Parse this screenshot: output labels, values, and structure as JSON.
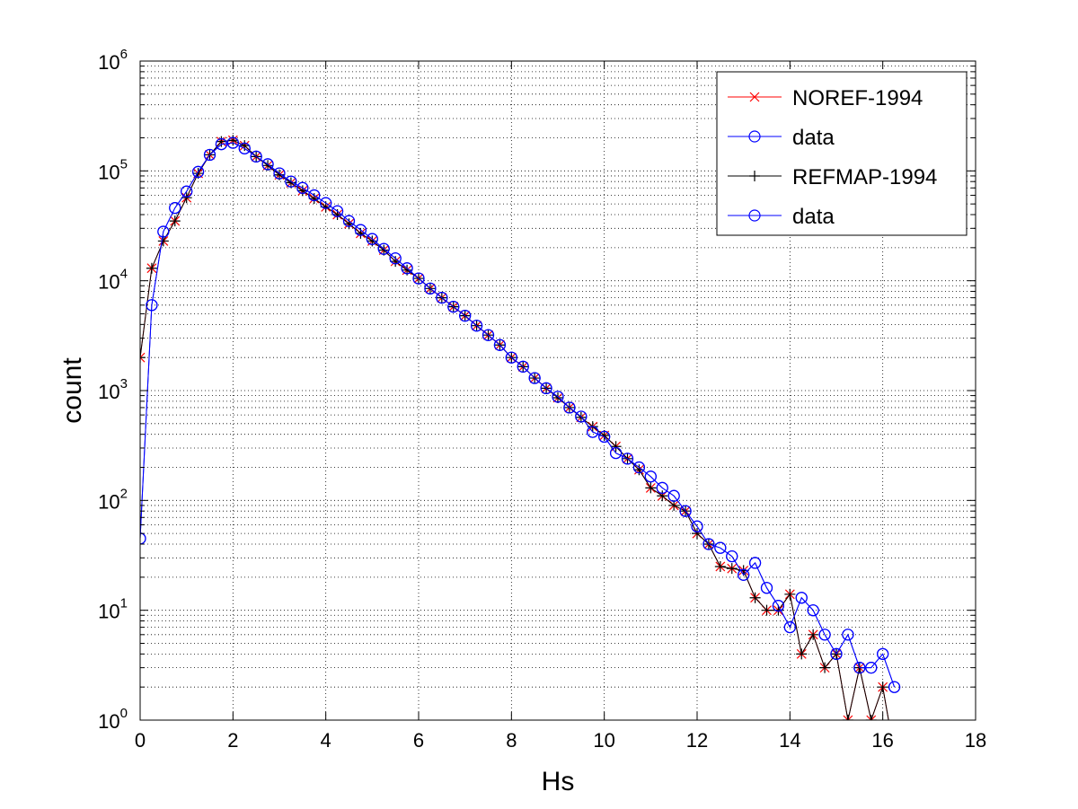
{
  "chart_data": {
    "type": "line",
    "title": "",
    "xlabel": "Hs",
    "ylabel": "count",
    "x_scale": "linear",
    "y_scale": "log",
    "xlim": [
      0,
      18
    ],
    "ylim": [
      1,
      1000000
    ],
    "x_ticks": [
      0,
      2,
      4,
      6,
      8,
      10,
      12,
      14,
      16,
      18
    ],
    "y_ticks": [
      1,
      10,
      100,
      1000,
      10000,
      100000,
      1000000
    ],
    "y_tick_labels": [
      {
        "base": "10",
        "exp": "0"
      },
      {
        "base": "10",
        "exp": "1"
      },
      {
        "base": "10",
        "exp": "2"
      },
      {
        "base": "10",
        "exp": "3"
      },
      {
        "base": "10",
        "exp": "4"
      },
      {
        "base": "10",
        "exp": "5"
      },
      {
        "base": "10",
        "exp": "6"
      }
    ],
    "grid": true,
    "legend_position": "top-right",
    "series": [
      {
        "name": "NOREF-1994",
        "color": "#ff0000",
        "marker": "x",
        "x": [
          0,
          0.25,
          0.5,
          0.75,
          1,
          1.25,
          1.5,
          1.75,
          2,
          2.25,
          2.5,
          2.75,
          3,
          3.25,
          3.5,
          3.75,
          4,
          4.25,
          4.5,
          4.75,
          5,
          5.25,
          5.5,
          5.75,
          6,
          6.25,
          6.5,
          6.75,
          7,
          7.25,
          7.5,
          7.75,
          8,
          8.25,
          8.5,
          8.75,
          9,
          9.25,
          9.5,
          9.75,
          10,
          10.25,
          10.5,
          10.75,
          11,
          11.25,
          11.5,
          11.75,
          12,
          12.25,
          12.5,
          12.75,
          13,
          13.25,
          13.5,
          13.75,
          14,
          14.25,
          14.5,
          14.75,
          15,
          15.25,
          15.5,
          15.75,
          16,
          16.25
        ],
        "y": [
          2000,
          13000,
          23000,
          35000,
          57000,
          95000,
          140000,
          185000,
          190000,
          170000,
          135000,
          112000,
          92000,
          78000,
          66000,
          56000,
          47000,
          40000,
          33000,
          27000,
          23000,
          19000,
          15000,
          12500,
          10500,
          8500,
          7000,
          5800,
          4800,
          3900,
          3200,
          2600,
          2000,
          1650,
          1300,
          1050,
          860,
          700,
          570,
          470,
          390,
          310,
          240,
          190,
          130,
          110,
          90,
          80,
          50,
          40,
          25,
          24,
          23,
          13,
          10,
          10,
          14,
          4,
          6,
          3,
          4,
          1,
          3,
          1,
          2,
          0.5
        ]
      },
      {
        "name": "data",
        "color": "#0000ff",
        "marker": "o",
        "x": [
          0,
          0.25,
          0.5,
          0.75,
          1,
          1.25,
          1.5,
          1.75,
          2,
          2.25,
          2.5,
          2.75,
          3,
          3.25,
          3.5,
          3.75,
          4,
          4.25,
          4.5,
          4.75,
          5,
          5.25,
          5.5,
          5.75,
          6,
          6.25,
          6.5,
          6.75,
          7,
          7.25,
          7.5,
          7.75,
          8,
          8.25,
          8.5,
          8.75,
          9,
          9.25,
          9.5,
          9.75,
          10,
          10.25,
          10.5,
          10.75,
          11,
          11.25,
          11.5,
          11.75,
          12,
          12.25,
          12.5,
          12.75,
          13,
          13.25,
          13.5,
          13.75,
          14,
          14.25,
          14.5,
          14.75,
          15,
          15.25,
          15.5,
          15.75,
          16,
          16.25
        ],
        "y": [
          45,
          6000,
          28000,
          46000,
          65000,
          98000,
          140000,
          175000,
          180000,
          160000,
          135000,
          115000,
          95000,
          80000,
          70000,
          60000,
          51000,
          43000,
          35000,
          29000,
          24000,
          19500,
          16000,
          13000,
          10500,
          8500,
          7000,
          5800,
          4800,
          3900,
          3200,
          2600,
          2000,
          1650,
          1300,
          1050,
          880,
          700,
          580,
          420,
          380,
          270,
          240,
          200,
          165,
          130,
          110,
          80,
          58,
          40,
          37,
          31,
          21,
          27,
          16,
          11,
          7,
          13,
          10,
          6,
          4,
          6,
          3,
          3,
          4,
          2
        ]
      },
      {
        "name": "REFMAP-1994",
        "color": "#000000",
        "marker": "+",
        "x": [
          0,
          0.25,
          0.5,
          0.75,
          1,
          1.25,
          1.5,
          1.75,
          2,
          2.25,
          2.5,
          2.75,
          3,
          3.25,
          3.5,
          3.75,
          4,
          4.25,
          4.5,
          4.75,
          5,
          5.25,
          5.5,
          5.75,
          6,
          6.25,
          6.5,
          6.75,
          7,
          7.25,
          7.5,
          7.75,
          8,
          8.25,
          8.5,
          8.75,
          9,
          9.25,
          9.5,
          9.75,
          10,
          10.25,
          10.5,
          10.75,
          11,
          11.25,
          11.5,
          11.75,
          12,
          12.25,
          12.5,
          12.75,
          13,
          13.25,
          13.5,
          13.75,
          14,
          14.25,
          14.5,
          14.75,
          15,
          15.25,
          15.5,
          15.75,
          16,
          16.25
        ],
        "y": [
          2000,
          13000,
          23000,
          35000,
          57000,
          95000,
          140000,
          185000,
          190000,
          170000,
          135000,
          112000,
          92000,
          78000,
          66000,
          56000,
          47000,
          40000,
          33000,
          27000,
          23000,
          19000,
          15000,
          12500,
          10500,
          8500,
          7000,
          5800,
          4800,
          3900,
          3200,
          2600,
          2000,
          1650,
          1300,
          1050,
          860,
          700,
          570,
          470,
          390,
          310,
          240,
          190,
          130,
          110,
          90,
          80,
          50,
          40,
          25,
          24,
          23,
          13,
          10,
          10,
          14,
          4,
          6,
          3,
          4,
          1,
          3,
          1,
          2,
          0.5
        ]
      },
      {
        "name": "data",
        "color": "#0000ff",
        "marker": "o",
        "x": [
          0,
          0.25,
          0.5,
          0.75,
          1,
          1.25,
          1.5,
          1.75,
          2,
          2.25,
          2.5,
          2.75,
          3,
          3.25,
          3.5,
          3.75,
          4,
          4.25,
          4.5,
          4.75,
          5,
          5.25,
          5.5,
          5.75,
          6,
          6.25,
          6.5,
          6.75,
          7,
          7.25,
          7.5,
          7.75,
          8,
          8.25,
          8.5,
          8.75,
          9,
          9.25,
          9.5,
          9.75,
          10,
          10.25,
          10.5,
          10.75,
          11,
          11.25,
          11.5,
          11.75,
          12,
          12.25,
          12.5,
          12.75,
          13,
          13.25,
          13.5,
          13.75,
          14,
          14.25,
          14.5,
          14.75,
          15,
          15.25,
          15.5,
          15.75,
          16,
          16.25
        ],
        "y": [
          45,
          6000,
          28000,
          46000,
          65000,
          98000,
          140000,
          175000,
          180000,
          160000,
          135000,
          115000,
          95000,
          80000,
          70000,
          60000,
          51000,
          43000,
          35000,
          29000,
          24000,
          19500,
          16000,
          13000,
          10500,
          8500,
          7000,
          5800,
          4800,
          3900,
          3200,
          2600,
          2000,
          1650,
          1300,
          1050,
          880,
          700,
          580,
          420,
          380,
          270,
          240,
          200,
          165,
          130,
          110,
          80,
          58,
          40,
          37,
          31,
          21,
          27,
          16,
          11,
          7,
          13,
          10,
          6,
          4,
          6,
          3,
          3,
          4,
          2
        ]
      }
    ]
  }
}
